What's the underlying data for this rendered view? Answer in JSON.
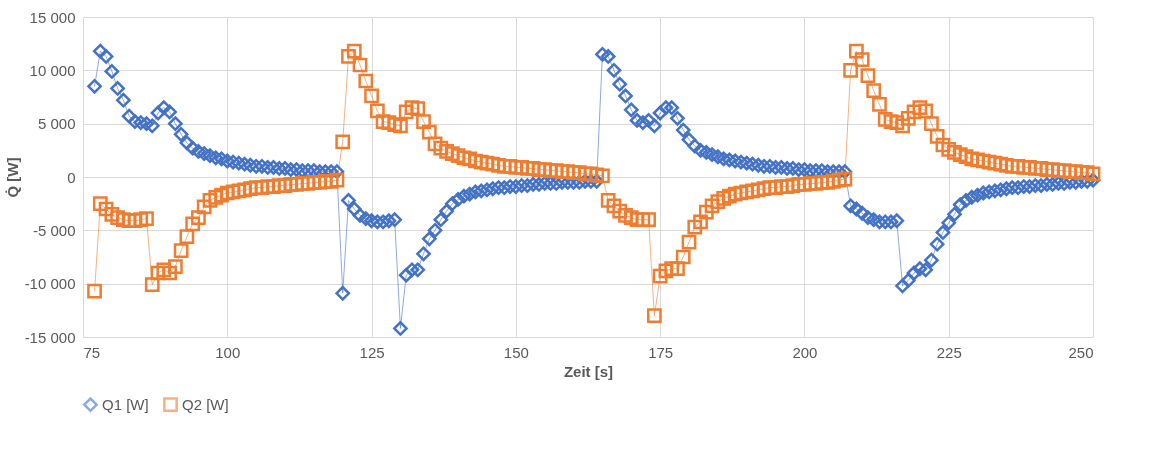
{
  "chart_data": {
    "type": "line",
    "xlabel": "Zeit [s]",
    "ylabel": "Q̇ [W]",
    "x": [
      77,
      78,
      79,
      80,
      81,
      82,
      83,
      84,
      85,
      86,
      87,
      88,
      89,
      90,
      91,
      92,
      93,
      94,
      95,
      96,
      97,
      98,
      99,
      100,
      101,
      102,
      103,
      104,
      105,
      106,
      107,
      108,
      109,
      110,
      111,
      112,
      113,
      114,
      115,
      116,
      117,
      118,
      119,
      120,
      121,
      122,
      123,
      124,
      125,
      126,
      127,
      128,
      129,
      130,
      131,
      132,
      133,
      134,
      135,
      136,
      137,
      138,
      139,
      140,
      141,
      142,
      143,
      144,
      145,
      146,
      147,
      148,
      149,
      150,
      151,
      152,
      153,
      154,
      155,
      156,
      157,
      158,
      159,
      160,
      161,
      162,
      163,
      164,
      165,
      166,
      167,
      168,
      169,
      170,
      171,
      172,
      173,
      174,
      175,
      176,
      177,
      178,
      179,
      180,
      181,
      182,
      183,
      184,
      185,
      186,
      187,
      188,
      189,
      190,
      191,
      192,
      193,
      194,
      195,
      196,
      197,
      198,
      199,
      200,
      201,
      202,
      203,
      204,
      205,
      206,
      207,
      208,
      209,
      210,
      211,
      212,
      213,
      214,
      215,
      216,
      217,
      218,
      219,
      220,
      221,
      222,
      223,
      224,
      225,
      226,
      227,
      228,
      229,
      230,
      231,
      232,
      233,
      234,
      235,
      236,
      237,
      238,
      239,
      240,
      241,
      242,
      243,
      244,
      245,
      246,
      247,
      248,
      249,
      250
    ],
    "series": [
      {
        "name": "Q1 [W]",
        "color": "#4472c4",
        "marker": "diamond",
        "values": [
          8500,
          11800,
          11300,
          9900,
          8300,
          7200,
          5700,
          5200,
          5100,
          5000,
          4800,
          6000,
          6500,
          6100,
          5000,
          4000,
          3200,
          2700,
          2400,
          2200,
          2000,
          1800,
          1700,
          1500,
          1400,
          1300,
          1200,
          1100,
          1000,
          1000,
          900,
          900,
          800,
          800,
          700,
          700,
          600,
          600,
          600,
          500,
          500,
          500,
          500,
          -10900,
          -2200,
          -3000,
          -3600,
          -3900,
          -4100,
          -4200,
          -4200,
          -4100,
          -4000,
          -14200,
          -9200,
          -8700,
          -8700,
          -7200,
          -5800,
          -5000,
          -4000,
          -3200,
          -2500,
          -2100,
          -1800,
          -1600,
          -1400,
          -1300,
          -1200,
          -1100,
          -1000,
          -1000,
          -900,
          -900,
          -800,
          -800,
          -700,
          -700,
          -600,
          -600,
          -600,
          -500,
          -500,
          -500,
          -500,
          -400,
          -400,
          -400,
          11500,
          11300,
          10000,
          8700,
          7600,
          6300,
          5300,
          5100,
          5300,
          4800,
          6000,
          6500,
          6500,
          5500,
          4400,
          3500,
          2900,
          2500,
          2300,
          2100,
          1900,
          1700,
          1600,
          1500,
          1400,
          1300,
          1200,
          1100,
          1000,
          1000,
          900,
          900,
          800,
          800,
          700,
          700,
          600,
          600,
          600,
          500,
          500,
          500,
          500,
          -2700,
          -3000,
          -3400,
          -3800,
          -4000,
          -4200,
          -4200,
          -4200,
          -4100,
          -10200,
          -9700,
          -9000,
          -8600,
          -8700,
          -7800,
          -6300,
          -5200,
          -4300,
          -3500,
          -2600,
          -2200,
          -1900,
          -1700,
          -1500,
          -1400,
          -1300,
          -1200,
          -1100,
          -1000,
          -1000,
          -900,
          -900,
          -800,
          -800,
          -700,
          -700,
          -600,
          -600,
          -500,
          -500,
          -400,
          -400,
          -300
        ]
      },
      {
        "name": "Q2 [W]",
        "color": "#ed7d31",
        "marker": "square",
        "values": [
          -10700,
          -2500,
          -3000,
          -3500,
          -3800,
          -4000,
          -4100,
          -4100,
          -4000,
          -3900,
          -10100,
          -9000,
          -8700,
          -9000,
          -8400,
          -6900,
          -5600,
          -4400,
          -3800,
          -2800,
          -2200,
          -1900,
          -1700,
          -1500,
          -1400,
          -1300,
          -1200,
          -1100,
          -1000,
          -1000,
          -900,
          -900,
          -800,
          -800,
          -700,
          -700,
          -600,
          -600,
          -500,
          -500,
          -400,
          -400,
          -300,
          3300,
          11300,
          11800,
          10500,
          9000,
          7600,
          6200,
          5200,
          5100,
          4900,
          4800,
          6100,
          6500,
          6400,
          5200,
          4200,
          3100,
          2700,
          2400,
          2200,
          2000,
          1800,
          1700,
          1500,
          1400,
          1300,
          1200,
          1100,
          1000,
          1000,
          900,
          900,
          800,
          800,
          700,
          700,
          600,
          600,
          500,
          500,
          400,
          400,
          300,
          300,
          200,
          100,
          -2200,
          -2700,
          -3200,
          -3600,
          -3800,
          -4000,
          -4000,
          -4000,
          -13000,
          -9300,
          -8800,
          -8600,
          -8600,
          -7500,
          -6100,
          -4700,
          -4200,
          -3300,
          -2700,
          -2300,
          -2000,
          -1800,
          -1600,
          -1500,
          -1400,
          -1300,
          -1200,
          -1100,
          -1000,
          -1000,
          -900,
          -900,
          -800,
          -700,
          -700,
          -600,
          -600,
          -500,
          -500,
          -400,
          -300,
          -200,
          10000,
          11800,
          11000,
          9500,
          8100,
          6800,
          5400,
          5200,
          5100,
          4800,
          5500,
          6100,
          6500,
          6200,
          5000,
          3800,
          3000,
          2600,
          2300,
          2100,
          1900,
          1700,
          1600,
          1500,
          1400,
          1300,
          1200,
          1100,
          1000,
          1000,
          900,
          900,
          800,
          800,
          700,
          700,
          600,
          600,
          500,
          500,
          400,
          400,
          300
        ]
      }
    ],
    "xlim": [
      75,
      250
    ],
    "xticks": [
      75,
      100,
      125,
      150,
      175,
      200,
      225,
      250
    ],
    "ylim": [
      -15000,
      15000
    ],
    "yticks": [
      {
        "value": -15000,
        "label": "-15 000"
      },
      {
        "value": -10000,
        "label": "-10 000"
      },
      {
        "value": -5000,
        "label": "-5 000"
      },
      0,
      {
        "value": 5000,
        "label": "5 000"
      },
      {
        "value": 10000,
        "label": "10 000"
      },
      {
        "value": 15000,
        "label": "15 000"
      }
    ],
    "grid": true,
    "legend": "bottom",
    "line_style": "solid"
  }
}
